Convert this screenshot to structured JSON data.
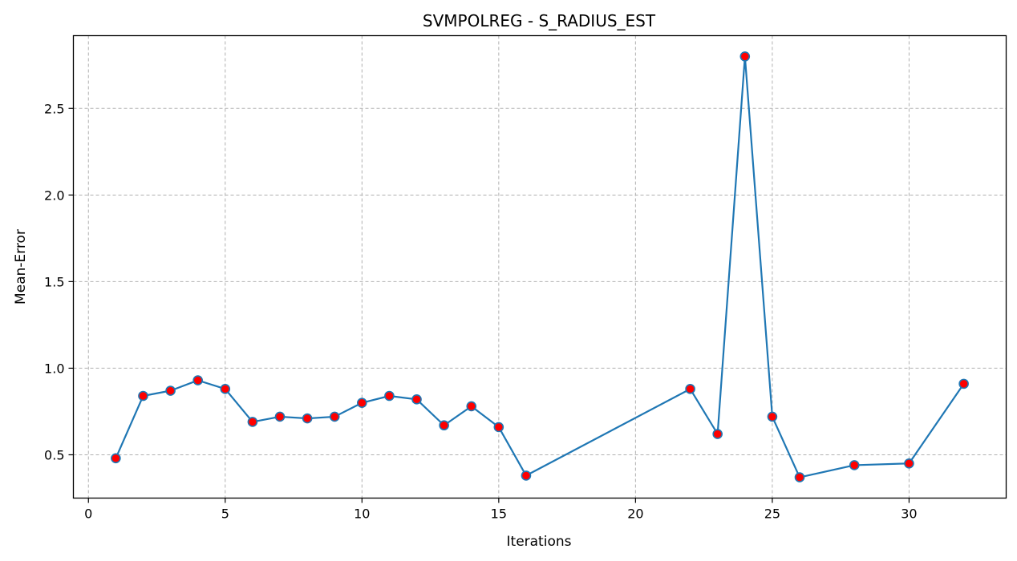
{
  "chart_data": {
    "type": "line",
    "title": "SVMPOLREG - S_RADIUS_EST",
    "xlabel": "Iterations",
    "ylabel": "Mean-Error",
    "xlim": [
      -0.55,
      33.55
    ],
    "ylim": [
      0.25,
      2.92
    ],
    "xticks": [
      0,
      5,
      10,
      15,
      20,
      25,
      30
    ],
    "yticks": [
      0.5,
      1.0,
      1.5,
      2.0,
      2.5
    ],
    "xtick_labels": [
      "0",
      "5",
      "10",
      "15",
      "20",
      "25",
      "30"
    ],
    "ytick_labels": [
      "0.5",
      "1.0",
      "1.5",
      "2.0",
      "2.5"
    ],
    "grid": true,
    "legend": "none",
    "line_color": "#1f77b4",
    "marker_color": "#ff0000",
    "marker_edge_color": "#1f77b4",
    "grid_color": "#b0b0b0",
    "series": [
      {
        "x": [
          1,
          2,
          3,
          4,
          5,
          6,
          7,
          8,
          9,
          10,
          11,
          12,
          13,
          14,
          15,
          16,
          22,
          23,
          24,
          25,
          26,
          28,
          30,
          32
        ],
        "values": [
          0.48,
          0.84,
          0.87,
          0.93,
          0.88,
          0.69,
          0.72,
          0.71,
          0.72,
          0.8,
          0.84,
          0.82,
          0.67,
          0.78,
          0.66,
          0.38,
          0.88,
          0.62,
          2.8,
          0.72,
          0.37,
          0.44,
          0.45,
          0.91
        ]
      }
    ]
  }
}
